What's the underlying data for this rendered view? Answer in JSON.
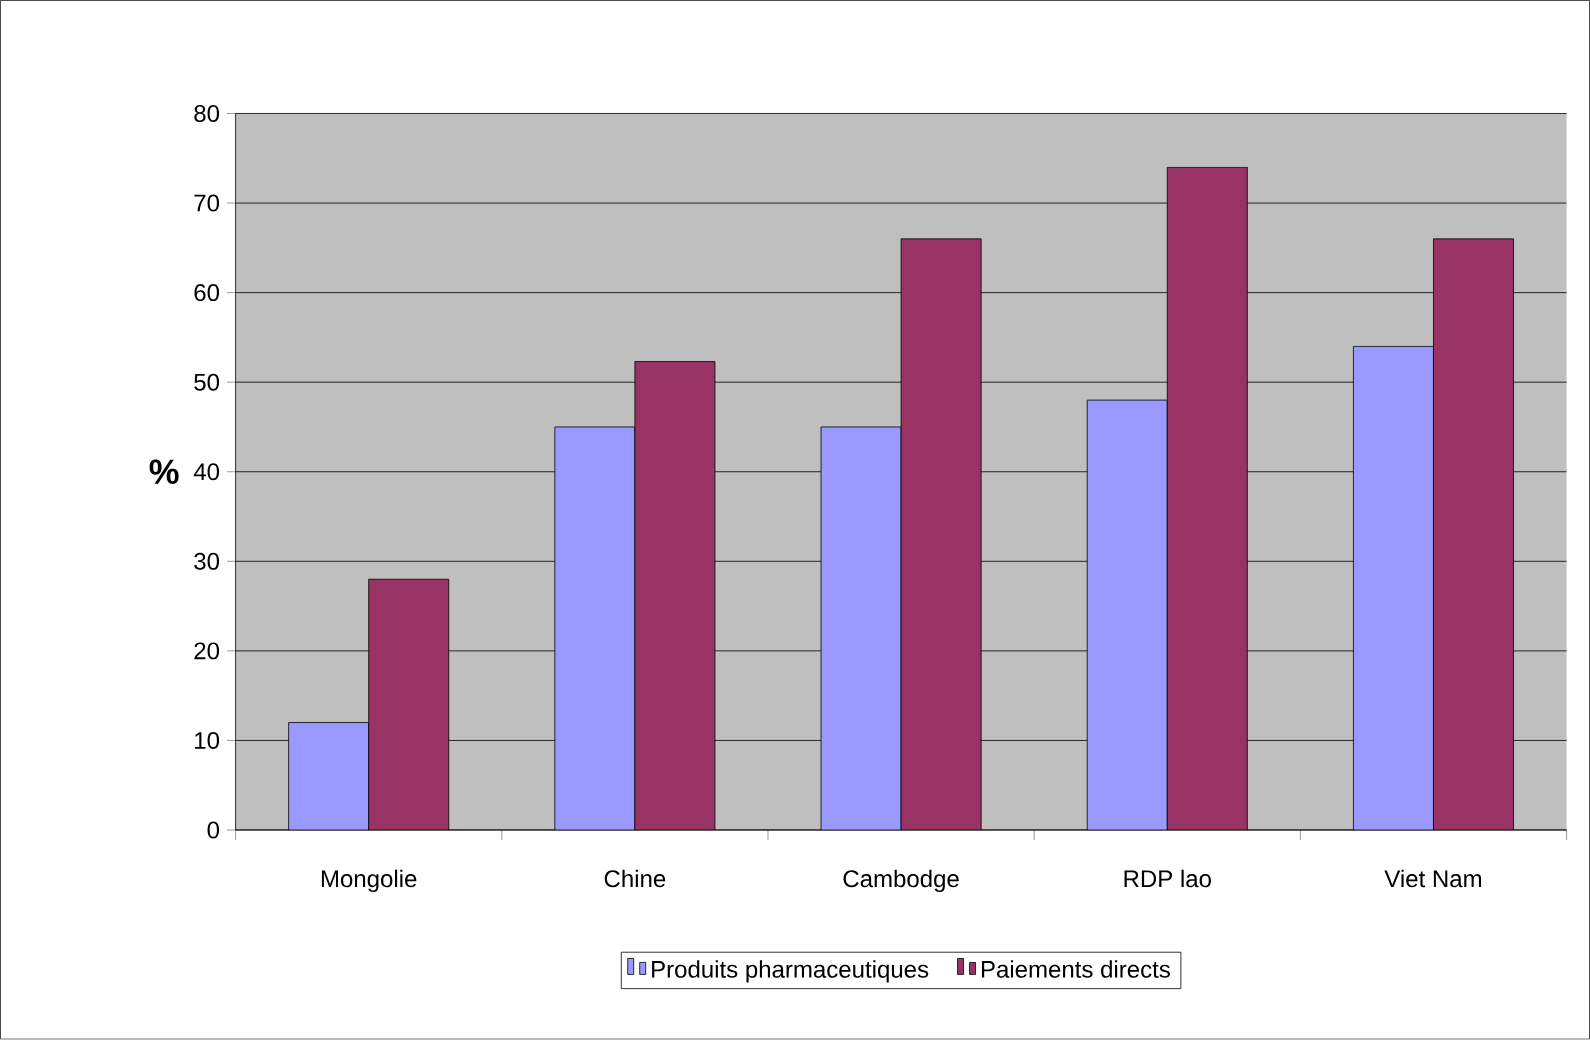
{
  "chart_data": {
    "type": "bar",
    "ylabel": "%",
    "categories": [
      "Mongolie",
      "Chine",
      "Cambodge",
      "RDP lao",
      "Viet Nam"
    ],
    "series": [
      {
        "name": "Produits pharmaceutiques",
        "color": "#9999ff",
        "values": [
          12,
          45,
          45,
          48,
          54
        ]
      },
      {
        "name": "Paiements directs",
        "color": "#993366",
        "values": [
          28,
          52.3,
          66,
          74,
          66
        ]
      }
    ],
    "ylim": [
      0,
      80
    ],
    "yticks": [
      0,
      10,
      20,
      30,
      40,
      50,
      60,
      70,
      80
    ],
    "grid": "y",
    "legend": "bottom"
  }
}
